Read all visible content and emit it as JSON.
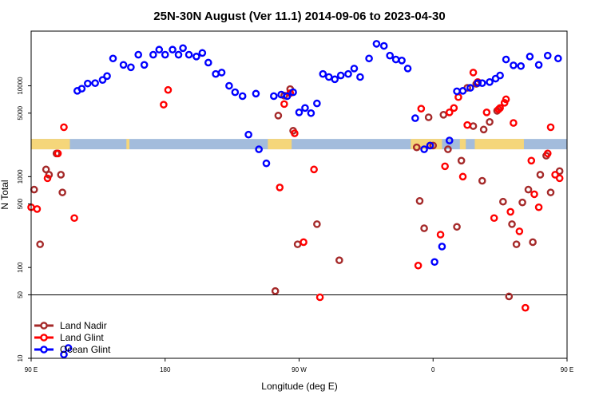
{
  "chart_data": {
    "type": "scatter",
    "title": "25N-30N August (Ver 11.1)   2014-09-06 to 2023-04-30",
    "xlabel": "Longitude (deg E)",
    "ylabel": "N Total",
    "x_scale": "linear",
    "y_scale": "log",
    "xlim": [
      90,
      450
    ],
    "ylim": [
      10,
      40000
    ],
    "x_ticks": [
      {
        "value": 90,
        "label": "90 E"
      },
      {
        "value": 180,
        "label": "180"
      },
      {
        "value": 270,
        "label": "90 W"
      },
      {
        "value": 360,
        "label": "0"
      },
      {
        "value": 450,
        "label": "90 E"
      },
      {
        "value": 540,
        "label": "180"
      }
    ],
    "y_ticks": [
      {
        "value": 10,
        "label": "10"
      },
      {
        "value": 50,
        "label": "50"
      },
      {
        "value": 100,
        "label": "100"
      },
      {
        "value": 500,
        "label": "500"
      },
      {
        "value": 1000,
        "label": "1000"
      },
      {
        "value": 5000,
        "label": "5000"
      },
      {
        "value": 10000,
        "label": "10000"
      }
    ],
    "reference_line": {
      "y": 50,
      "color": "#000000"
    },
    "band": {
      "y_range": [
        2000,
        2600
      ],
      "land_color": "#f5d67a",
      "ocean_color": "#a3bcdc",
      "land_x_ranges": [
        [
          90,
          116
        ],
        [
          154,
          156
        ],
        [
          249,
          265
        ],
        [
          345,
          366
        ],
        [
          378,
          382
        ],
        [
          388,
          421
        ],
        [
          457,
          470
        ],
        [
          517,
          520
        ],
        [
          541,
          550
        ],
        [
          560,
          568
        ]
      ]
    },
    "legend": {
      "position": "bottom-left"
    },
    "series": [
      {
        "name": "Land Nadir",
        "color": "#a52a2a",
        "x": [
          92,
          96,
          100,
          102,
          107,
          110,
          111,
          254,
          256,
          260,
          264,
          266,
          269,
          282,
          297,
          349,
          351,
          354,
          357,
          360,
          367,
          370,
          376,
          379,
          383,
          387,
          389,
          393,
          394,
          398,
          403,
          407,
          411,
          413,
          416,
          420,
          424,
          427,
          432,
          436,
          439,
          445,
          466,
          467,
          470
        ],
        "y": [
          720,
          180,
          1200,
          1050,
          1800,
          1050,
          670,
          55,
          4700,
          7800,
          9200,
          3200,
          180,
          300,
          120,
          2100,
          540,
          270,
          4500,
          2200,
          4800,
          2000,
          280,
          1500,
          9500,
          3600,
          10500,
          900,
          3300,
          4000,
          5300,
          530,
          48,
          300,
          180,
          520,
          720,
          190,
          1050,
          1700,
          670,
          1150,
          670,
          1050,
          670
        ]
      },
      {
        "name": "Land Glint",
        "color": "#ff0000",
        "x": [
          90,
          94,
          101,
          108,
          112,
          119,
          179,
          182,
          257,
          260,
          264,
          267,
          273,
          280,
          284,
          350,
          352,
          358,
          365,
          368,
          371,
          374,
          377,
          380,
          383,
          387,
          390,
          396,
          401,
          404,
          405,
          408,
          409,
          412,
          414,
          418,
          422,
          426,
          428,
          431,
          437,
          439,
          442,
          445,
          463,
          465
        ],
        "y": [
          460,
          440,
          960,
          1800,
          3500,
          350,
          6200,
          9000,
          760,
          6300,
          8300,
          3000,
          190,
          1200,
          47,
          105,
          5600,
          2200,
          230,
          1300,
          5100,
          5700,
          7500,
          1000,
          3700,
          14000,
          11000,
          5100,
          350,
          5500,
          5700,
          6500,
          7100,
          410,
          3900,
          250,
          36,
          1500,
          640,
          460,
          1800,
          3500,
          1050,
          960,
          13,
          350
        ]
      },
      {
        "name": "Ocean Glint",
        "color": "#0000ff",
        "x": [
          112,
          115,
          121,
          124,
          128,
          133,
          138,
          141,
          145,
          152,
          157,
          162,
          166,
          172,
          176,
          180,
          185,
          189,
          192,
          196,
          201,
          205,
          209,
          214,
          218,
          223,
          227,
          232,
          236,
          241,
          243,
          248,
          253,
          258,
          262,
          266,
          270,
          274,
          278,
          282,
          286,
          290,
          294,
          298,
          303,
          307,
          311,
          317,
          322,
          327,
          331,
          335,
          339,
          343,
          348,
          354,
          358,
          361,
          366,
          371,
          376,
          380,
          385,
          390,
          393,
          398,
          402,
          405,
          409,
          414,
          419,
          425,
          431,
          437,
          444,
          451,
          457,
          462
        ],
        "y": [
          11,
          13,
          8800,
          9300,
          10600,
          10700,
          11600,
          12800,
          20000,
          17000,
          16000,
          22000,
          17000,
          22000,
          25000,
          22000,
          25000,
          22000,
          26000,
          22000,
          21000,
          23000,
          18000,
          13500,
          14000,
          10000,
          8500,
          7700,
          2900,
          8200,
          2000,
          1400,
          7700,
          8000,
          7700,
          8500,
          5100,
          5700,
          5000,
          6400,
          13500,
          12500,
          11800,
          13000,
          13500,
          15500,
          12500,
          20000,
          29000,
          27500,
          21500,
          19500,
          19000,
          15500,
          4400,
          2000,
          2200,
          115,
          170,
          2500,
          8700,
          8800,
          9500,
          10700,
          10700,
          11000,
          12000,
          13000,
          19500,
          16800,
          16500,
          21000,
          17000,
          21500,
          20000,
          21000,
          18500,
          21000
        ]
      }
    ]
  }
}
